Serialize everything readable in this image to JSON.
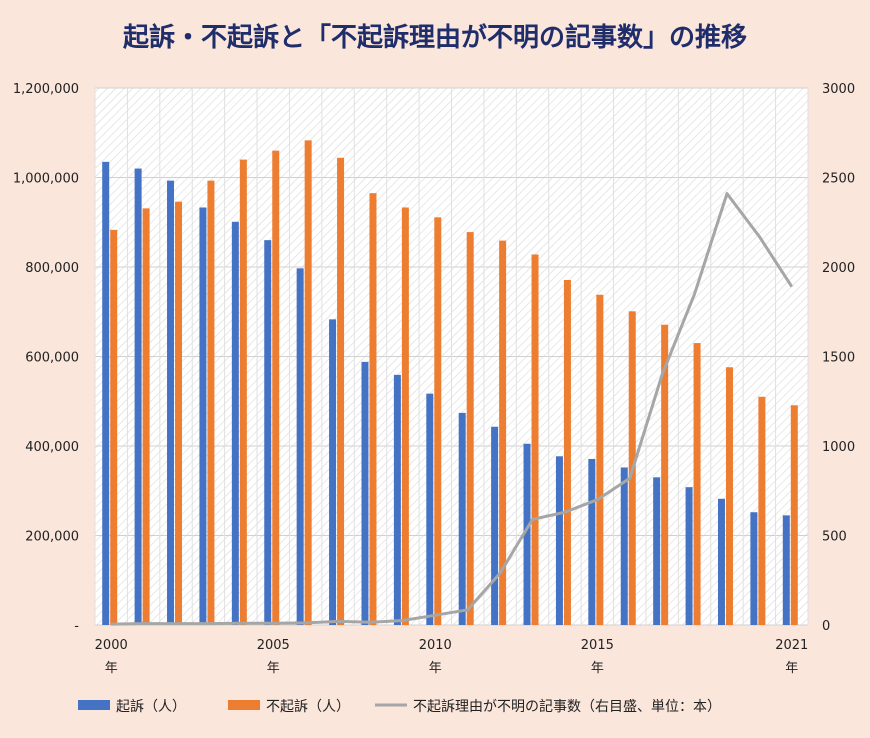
{
  "chart_data": {
    "type": "bar",
    "title": "起訴・不起訴と「不起訴理由が不明の記事数」の推移",
    "categories": [
      "2000",
      "2001",
      "2002",
      "2003",
      "2004",
      "2005",
      "2006",
      "2007",
      "2008",
      "2009",
      "2010",
      "2011",
      "2012",
      "2013",
      "2014",
      "2015",
      "2016",
      "2017",
      "2018",
      "2019",
      "2020",
      "2021"
    ],
    "x_tick_labels": [
      {
        "index": 0,
        "year": "2000",
        "suffix": "年"
      },
      {
        "index": 5,
        "year": "2005",
        "suffix": "年"
      },
      {
        "index": 10,
        "year": "2010",
        "suffix": "年"
      },
      {
        "index": 15,
        "year": "2015",
        "suffix": "年"
      },
      {
        "index": 21,
        "year": "2021",
        "suffix": "年"
      }
    ],
    "left_axis": {
      "ylim": [
        0,
        1200000
      ],
      "tick_labels": [
        "-",
        "200,000",
        "400,000",
        "600,000",
        "800,000",
        "1,000,000",
        "1,200,000"
      ],
      "tick_values": [
        0,
        200000,
        400000,
        600000,
        800000,
        1000000,
        1200000
      ]
    },
    "right_axis": {
      "ylim": [
        0,
        3000
      ],
      "tick_labels": [
        "0",
        "500",
        "1000",
        "1500",
        "2000",
        "2500",
        "3000"
      ],
      "tick_values": [
        0,
        500,
        1000,
        1500,
        2000,
        2500,
        3000
      ]
    },
    "series": [
      {
        "name": "起訴（人）",
        "kind": "bar",
        "axis": "left",
        "color": "#4472c4",
        "values": [
          1035000,
          1020000,
          993000,
          933000,
          901000,
          860000,
          797000,
          683000,
          588000,
          559000,
          517000,
          474000,
          443000,
          405000,
          377000,
          371000,
          352000,
          330000,
          308000,
          282000,
          252000,
          245000
        ]
      },
      {
        "name": "不起訴（人）",
        "kind": "bar",
        "axis": "left",
        "color": "#ed7d31",
        "values": [
          883000,
          931000,
          946000,
          993000,
          1040000,
          1060000,
          1083000,
          1044000,
          965000,
          933000,
          911000,
          878000,
          859000,
          828000,
          771000,
          738000,
          701000,
          671000,
          630000,
          576000,
          510000,
          491000
        ]
      },
      {
        "name": "不起訴理由が不明の記事数（右目盛、単位：本）",
        "kind": "line",
        "axis": "right",
        "color": "#a6a6a6",
        "values": [
          5,
          8,
          8,
          8,
          10,
          10,
          12,
          20,
          15,
          25,
          55,
          85,
          290,
          590,
          630,
          700,
          820,
          1400,
          1850,
          2410,
          2170,
          1890
        ]
      }
    ],
    "grid": true,
    "legend_position": "bottom"
  }
}
